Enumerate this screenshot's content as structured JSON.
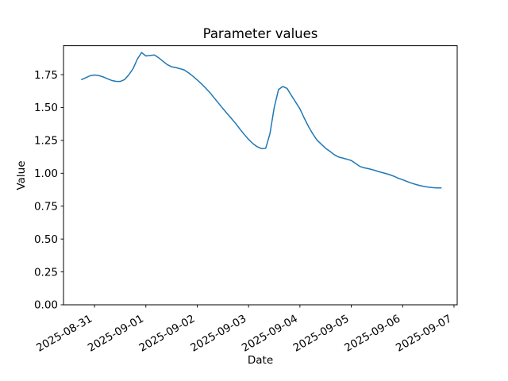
{
  "figure": {
    "background": "#ffffff"
  },
  "chart_data": {
    "type": "line",
    "title": "Parameter values",
    "xlabel": "Date",
    "ylabel": "Value",
    "legend": null,
    "grid": false,
    "line_color": "#1f77b4",
    "line_width": 1.5,
    "axis_color": "#000000",
    "x_start_datetime": "2025-08-30 18:00",
    "x_unit": "hours_since_start",
    "xlim_hours": [
      -8.5,
      175.5
    ],
    "ylim": [
      0,
      1.97
    ],
    "x_ticks": [
      {
        "hours": 6,
        "label": "2025-08-31"
      },
      {
        "hours": 30,
        "label": "2025-09-01"
      },
      {
        "hours": 54,
        "label": "2025-09-02"
      },
      {
        "hours": 78,
        "label": "2025-09-03"
      },
      {
        "hours": 102,
        "label": "2025-09-04"
      },
      {
        "hours": 126,
        "label": "2025-09-05"
      },
      {
        "hours": 150,
        "label": "2025-09-06"
      },
      {
        "hours": 174,
        "label": "2025-09-07"
      }
    ],
    "y_ticks": [
      {
        "value": 0.0,
        "label": "0.00"
      },
      {
        "value": 0.25,
        "label": "0.25"
      },
      {
        "value": 0.5,
        "label": "0.50"
      },
      {
        "value": 0.75,
        "label": "0.75"
      },
      {
        "value": 1.0,
        "label": "1.00"
      },
      {
        "value": 1.25,
        "label": "1.25"
      },
      {
        "value": 1.5,
        "label": "1.50"
      },
      {
        "value": 1.75,
        "label": "1.75"
      }
    ],
    "points": [
      [
        0,
        1.713
      ],
      [
        2,
        1.727
      ],
      [
        4,
        1.742
      ],
      [
        6,
        1.747
      ],
      [
        8,
        1.743
      ],
      [
        10,
        1.733
      ],
      [
        12,
        1.719
      ],
      [
        14,
        1.706
      ],
      [
        16,
        1.699
      ],
      [
        18,
        1.698
      ],
      [
        20,
        1.712
      ],
      [
        22,
        1.748
      ],
      [
        24,
        1.795
      ],
      [
        26,
        1.868
      ],
      [
        28,
        1.918
      ],
      [
        30,
        1.892
      ],
      [
        32,
        1.896
      ],
      [
        34,
        1.9
      ],
      [
        36,
        1.878
      ],
      [
        38,
        1.852
      ],
      [
        40,
        1.826
      ],
      [
        42,
        1.81
      ],
      [
        44,
        1.804
      ],
      [
        46,
        1.795
      ],
      [
        48,
        1.785
      ],
      [
        50,
        1.763
      ],
      [
        52,
        1.738
      ],
      [
        54,
        1.71
      ],
      [
        56,
        1.68
      ],
      [
        58,
        1.647
      ],
      [
        60,
        1.612
      ],
      [
        62,
        1.572
      ],
      [
        64,
        1.532
      ],
      [
        66,
        1.492
      ],
      [
        68,
        1.454
      ],
      [
        70,
        1.416
      ],
      [
        72,
        1.378
      ],
      [
        74,
        1.335
      ],
      [
        76,
        1.295
      ],
      [
        78,
        1.258
      ],
      [
        80,
        1.226
      ],
      [
        82,
        1.202
      ],
      [
        84,
        1.188
      ],
      [
        86,
        1.19
      ],
      [
        88,
        1.302
      ],
      [
        90,
        1.502
      ],
      [
        92,
        1.637
      ],
      [
        94,
        1.66
      ],
      [
        96,
        1.645
      ],
      [
        98,
        1.592
      ],
      [
        100,
        1.541
      ],
      [
        102,
        1.49
      ],
      [
        104,
        1.42
      ],
      [
        106,
        1.356
      ],
      [
        108,
        1.3
      ],
      [
        110,
        1.252
      ],
      [
        112,
        1.221
      ],
      [
        114,
        1.19
      ],
      [
        116,
        1.167
      ],
      [
        118,
        1.142
      ],
      [
        120,
        1.124
      ],
      [
        122,
        1.116
      ],
      [
        124,
        1.107
      ],
      [
        126,
        1.097
      ],
      [
        128,
        1.075
      ],
      [
        130,
        1.052
      ],
      [
        132,
        1.042
      ],
      [
        134,
        1.035
      ],
      [
        136,
        1.027
      ],
      [
        138,
        1.017
      ],
      [
        140,
        1.007
      ],
      [
        142,
        0.999
      ],
      [
        144,
        0.989
      ],
      [
        146,
        0.977
      ],
      [
        148,
        0.962
      ],
      [
        150,
        0.951
      ],
      [
        152,
        0.938
      ],
      [
        154,
        0.926
      ],
      [
        156,
        0.916
      ],
      [
        158,
        0.907
      ],
      [
        160,
        0.9
      ],
      [
        162,
        0.895
      ],
      [
        164,
        0.891
      ],
      [
        166,
        0.889
      ],
      [
        168,
        0.889
      ]
    ]
  }
}
